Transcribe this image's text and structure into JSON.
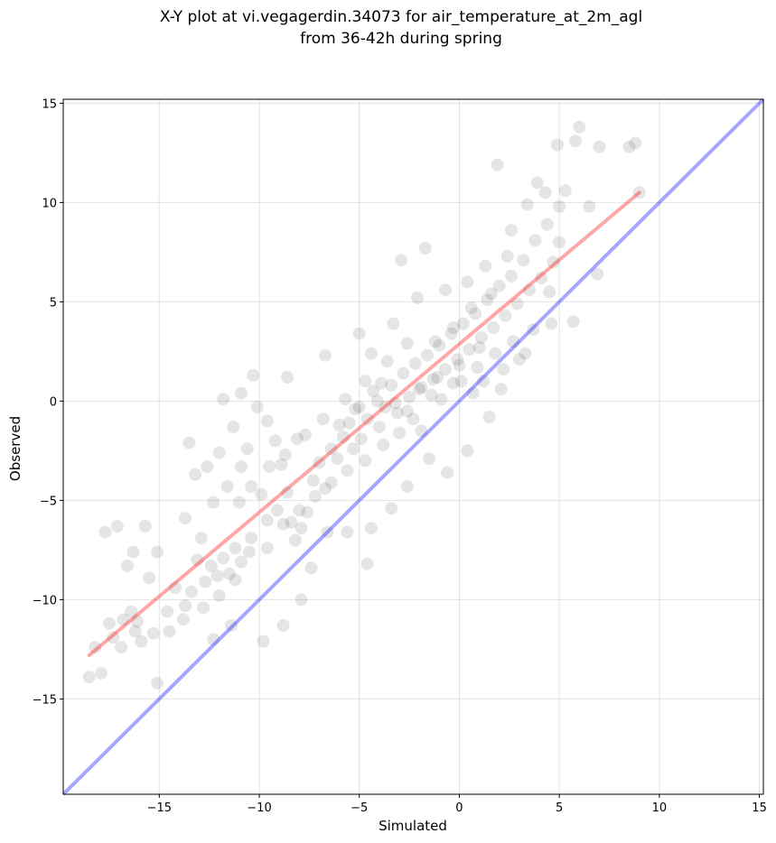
{
  "chart_data": {
    "type": "scatter",
    "title": [
      "X-Y plot at vi.vegagerdin.34073 for air_temperature_at_2m_agl",
      "from 36-42h during spring"
    ],
    "xlabel": "Simulated",
    "ylabel": "Observed",
    "xlim": [
      -19.8,
      15.2
    ],
    "ylim": [
      -19.8,
      15.2
    ],
    "xticks": [
      -15,
      -10,
      -5,
      0,
      5,
      10,
      15
    ],
    "yticks": [
      -15,
      -10,
      -5,
      0,
      5,
      10,
      15
    ],
    "xtick_labels": [
      "−15",
      "−10",
      "−5",
      "0",
      "5",
      "10",
      "15"
    ],
    "ytick_labels": [
      "−15",
      "−10",
      "−5",
      "0",
      "5",
      "10",
      "15"
    ],
    "grid": true,
    "point_color": "#000000",
    "point_opacity": 0.1,
    "points_sample": [
      [
        -18.5,
        -13.9
      ],
      [
        -17.9,
        -13.7
      ],
      [
        -18.2,
        -12.4
      ],
      [
        -17.5,
        -11.2
      ],
      [
        -16.8,
        -11.0
      ],
      [
        -16.4,
        -10.6
      ],
      [
        -16.2,
        -11.6
      ],
      [
        -15.9,
        -12.1
      ],
      [
        -15.1,
        -14.2
      ],
      [
        -17.7,
        -6.6
      ],
      [
        -17.1,
        -6.3
      ],
      [
        -15.7,
        -6.3
      ],
      [
        -16.6,
        -8.3
      ],
      [
        -16.3,
        -7.6
      ],
      [
        -15.5,
        -8.9
      ],
      [
        -15.1,
        -7.6
      ],
      [
        -14.6,
        -10.6
      ],
      [
        -14.2,
        -9.4
      ],
      [
        -13.8,
        -11.0
      ],
      [
        -13.4,
        -9.6
      ],
      [
        -13.1,
        -8.0
      ],
      [
        -12.7,
        -9.1
      ],
      [
        -12.4,
        -8.3
      ],
      [
        -12.1,
        -8.8
      ],
      [
        -11.8,
        -7.9
      ],
      [
        -11.5,
        -8.7
      ],
      [
        -11.2,
        -7.4
      ],
      [
        -10.9,
        -8.1
      ],
      [
        -12.9,
        -6.9
      ],
      [
        -13.7,
        -5.9
      ],
      [
        -12.3,
        -5.1
      ],
      [
        -12.6,
        -3.3
      ],
      [
        -13.5,
        -2.1
      ],
      [
        -13.2,
        -3.7
      ],
      [
        -12.0,
        -2.6
      ],
      [
        -11.6,
        -4.3
      ],
      [
        -11.3,
        -1.3
      ],
      [
        -10.9,
        -3.3
      ],
      [
        -10.6,
        -2.4
      ],
      [
        -10.3,
        1.3
      ],
      [
        -10.9,
        0.4
      ],
      [
        -11.8,
        0.1
      ],
      [
        -10.1,
        -0.3
      ],
      [
        -9.6,
        -1.0
      ],
      [
        -9.2,
        -2.0
      ],
      [
        -8.9,
        -3.2
      ],
      [
        -8.6,
        -4.6
      ],
      [
        -8.4,
        -6.1
      ],
      [
        -8.2,
        -7.0
      ],
      [
        -7.9,
        -6.4
      ],
      [
        -7.6,
        -5.6
      ],
      [
        -7.3,
        -4.0
      ],
      [
        -7.0,
        -3.1
      ],
      [
        -6.7,
        -4.4
      ],
      [
        -6.4,
        -2.4
      ],
      [
        -6.1,
        -2.9
      ],
      [
        -5.8,
        -1.8
      ],
      [
        -5.5,
        -1.1
      ],
      [
        -5.2,
        -0.4
      ],
      [
        -4.9,
        -1.9
      ],
      [
        -4.6,
        -0.9
      ],
      [
        -4.3,
        0.5
      ],
      [
        -4.0,
        -1.3
      ],
      [
        -3.7,
        -0.3
      ],
      [
        -3.4,
        0.8
      ],
      [
        -3.1,
        -0.6
      ],
      [
        -2.8,
        1.4
      ],
      [
        -2.5,
        0.2
      ],
      [
        -2.2,
        1.9
      ],
      [
        -1.9,
        0.7
      ],
      [
        -1.6,
        2.3
      ],
      [
        -1.3,
        1.1
      ],
      [
        -1.0,
        2.8
      ],
      [
        -0.7,
        1.6
      ],
      [
        -0.4,
        3.4
      ],
      [
        -0.1,
        2.1
      ],
      [
        0.2,
        3.9
      ],
      [
        0.5,
        2.6
      ],
      [
        0.8,
        4.4
      ],
      [
        1.1,
        3.2
      ],
      [
        1.4,
        5.1
      ],
      [
        1.7,
        3.7
      ],
      [
        2.0,
        5.8
      ],
      [
        2.3,
        4.3
      ],
      [
        2.6,
        6.3
      ],
      [
        2.9,
        4.9
      ],
      [
        3.2,
        7.1
      ],
      [
        3.5,
        5.6
      ],
      [
        3.8,
        8.1
      ],
      [
        4.1,
        6.2
      ],
      [
        4.4,
        8.9
      ],
      [
        4.7,
        7.0
      ],
      [
        5.0,
        9.8
      ],
      [
        5.3,
        10.6
      ],
      [
        4.9,
        12.9
      ],
      [
        5.8,
        13.1
      ],
      [
        6.0,
        13.8
      ],
      [
        7.0,
        12.8
      ],
      [
        8.5,
        12.8
      ],
      [
        8.8,
        13.0
      ],
      [
        9.0,
        10.5
      ],
      [
        6.5,
        9.8
      ],
      [
        6.9,
        6.4
      ],
      [
        5.7,
        4.0
      ],
      [
        4.6,
        3.9
      ],
      [
        1.9,
        11.9
      ],
      [
        -1.7,
        7.7
      ],
      [
        -2.9,
        7.1
      ],
      [
        -3.9,
        0.9
      ],
      [
        -4.4,
        2.4
      ],
      [
        -5.3,
        -2.4
      ],
      [
        -5.6,
        -6.6
      ],
      [
        -4.6,
        -8.2
      ],
      [
        -6.6,
        -6.6
      ],
      [
        -7.4,
        -8.4
      ],
      [
        -7.9,
        -10.0
      ],
      [
        -8.8,
        -11.3
      ],
      [
        -9.8,
        -12.1
      ],
      [
        -11.4,
        -11.3
      ],
      [
        -12.3,
        -12.0
      ],
      [
        -9.6,
        -7.4
      ],
      [
        -10.4,
        -6.9
      ],
      [
        -9.1,
        -5.5
      ],
      [
        -9.9,
        -4.7
      ],
      [
        -8.1,
        -1.9
      ],
      [
        -8.6,
        1.2
      ],
      [
        -6.7,
        2.3
      ],
      [
        -5.0,
        3.4
      ],
      [
        -3.3,
        3.9
      ],
      [
        -2.1,
        5.2
      ],
      [
        -0.7,
        5.6
      ],
      [
        0.4,
        6.0
      ],
      [
        1.3,
        6.8
      ],
      [
        2.6,
        8.6
      ],
      [
        3.4,
        9.9
      ],
      [
        3.9,
        11.0
      ],
      [
        4.3,
        10.5
      ],
      [
        5.0,
        8.0
      ],
      [
        3.0,
        2.1
      ],
      [
        2.1,
        0.6
      ],
      [
        1.5,
        -0.8
      ],
      [
        0.4,
        -2.5
      ],
      [
        -0.6,
        -3.6
      ],
      [
        -1.5,
        -2.9
      ],
      [
        -2.6,
        -4.3
      ],
      [
        -3.4,
        -5.4
      ],
      [
        -4.4,
        -6.4
      ],
      [
        -1.9,
        -1.5
      ],
      [
        -0.9,
        0.1
      ],
      [
        0.1,
        1.0
      ],
      [
        0.9,
        1.7
      ],
      [
        1.8,
        2.4
      ],
      [
        2.7,
        3.0
      ],
      [
        3.7,
        3.6
      ],
      [
        4.5,
        5.5
      ],
      [
        -2.3,
        -0.9
      ],
      [
        -3.0,
        -1.6
      ],
      [
        -3.8,
        -2.2
      ],
      [
        -4.7,
        -3.0
      ],
      [
        -5.6,
        -3.5
      ],
      [
        -6.4,
        -4.1
      ],
      [
        -7.2,
        -4.8
      ],
      [
        -8.0,
        -5.5
      ],
      [
        -8.8,
        -6.2
      ],
      [
        -9.6,
        -6.0
      ],
      [
        -10.5,
        -7.6
      ],
      [
        -11.2,
        -9.0
      ],
      [
        -12.0,
        -9.8
      ],
      [
        -12.8,
        -10.4
      ],
      [
        -13.7,
        -10.3
      ],
      [
        -14.5,
        -11.6
      ],
      [
        -15.3,
        -11.7
      ],
      [
        -16.1,
        -11.1
      ],
      [
        -16.9,
        -12.4
      ],
      [
        -17.3,
        -11.9
      ],
      [
        -1.2,
        3.0
      ],
      [
        -0.3,
        3.7
      ],
      [
        0.6,
        4.7
      ],
      [
        1.6,
        5.4
      ],
      [
        2.4,
        7.3
      ],
      [
        -2.6,
        2.9
      ],
      [
        -3.6,
        2.0
      ],
      [
        -4.7,
        1.0
      ],
      [
        -5.7,
        0.1
      ],
      [
        -6.8,
        -0.9
      ],
      [
        -7.7,
        -1.7
      ],
      [
        -8.7,
        -2.7
      ],
      [
        -9.5,
        -3.3
      ],
      [
        -10.4,
        -4.3
      ],
      [
        -11.0,
        -5.1
      ],
      [
        -3.2,
        -0.1
      ],
      [
        -2.0,
        0.6
      ],
      [
        -1.1,
        1.2
      ],
      [
        0.0,
        1.8
      ],
      [
        1.0,
        2.7
      ],
      [
        -6.0,
        -1.2
      ],
      [
        -5.0,
        -0.3
      ],
      [
        -4.1,
        0.0
      ],
      [
        -2.6,
        -0.5
      ],
      [
        -1.4,
        0.3
      ],
      [
        -0.3,
        0.9
      ],
      [
        0.7,
        0.4
      ],
      [
        1.2,
        1.0
      ],
      [
        2.2,
        1.6
      ],
      [
        3.3,
        2.4
      ]
    ],
    "fit_line": {
      "color": "#ff0000",
      "x1": -18.5,
      "y1": -12.8,
      "x2": 9.0,
      "y2": 10.5
    },
    "identity_line": {
      "color": "#0000ff",
      "x1": -19.8,
      "y1": -19.8,
      "x2": 15.2,
      "y2": 15.2
    }
  }
}
